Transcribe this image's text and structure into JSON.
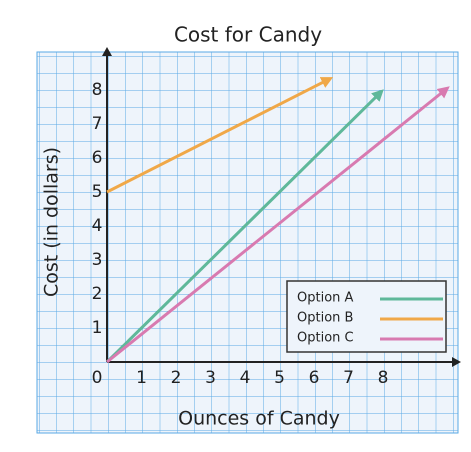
{
  "chart_data": {
    "type": "line",
    "title": "Cost for Candy",
    "x_label": "Ounces of Candy",
    "y_label": "Cost (in dollars)",
    "xlim": [
      0,
      10
    ],
    "ylim": [
      0,
      9
    ],
    "xticks": [
      0,
      1,
      2,
      3,
      4,
      5,
      6,
      7,
      8
    ],
    "yticks": [
      1,
      2,
      3,
      4,
      5,
      6,
      7,
      8
    ],
    "series": [
      {
        "name": "Option A",
        "color": "#5fb89a",
        "x": [
          0,
          7.9
        ],
        "values": [
          0,
          7.9
        ]
      },
      {
        "name": "Option B",
        "color": "#f0a848",
        "x": [
          0,
          6.4
        ],
        "values": [
          5,
          8.3
        ]
      },
      {
        "name": "Option C",
        "color": "#d87ab0",
        "x": [
          0,
          9.8
        ],
        "values": [
          0,
          8
        ]
      }
    ]
  }
}
